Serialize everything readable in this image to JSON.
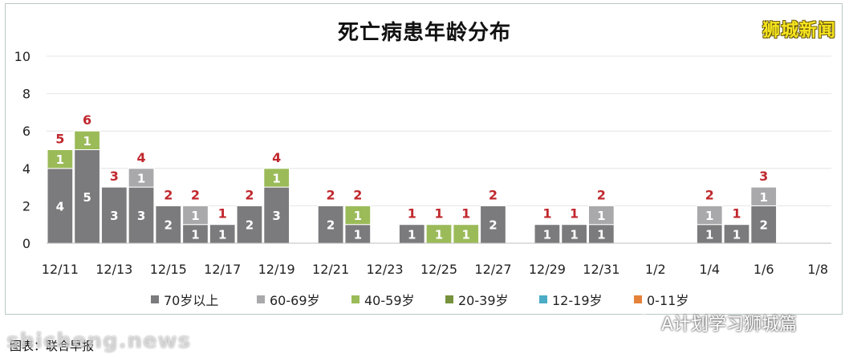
{
  "title": "死亡病患年龄分布",
  "brand": "狮城新闻",
  "watermark": "A计划学习狮城篇",
  "caption": "图表：联合早报",
  "site_mark": "shicheng.news",
  "legend": [
    {
      "label": "70岁以上",
      "color": "#7b7b7d"
    },
    {
      "label": "60-69岁",
      "color": "#a9a9ab"
    },
    {
      "label": "40-59岁",
      "color": "#9bbb59"
    },
    {
      "label": "20-39岁",
      "color": "#76923c"
    },
    {
      "label": "12-19岁",
      "color": "#4aacc6"
    },
    {
      "label": "0-11岁",
      "color": "#e5823a"
    }
  ],
  "chart_data": {
    "type": "bar",
    "stacked": true,
    "title": "死亡病患年龄分布",
    "ylim": [
      0,
      10
    ],
    "y_ticks": [
      "0",
      "2",
      "4",
      "6",
      "8",
      "10"
    ],
    "categories": [
      "12/11",
      "12/12",
      "12/13",
      "12/14",
      "12/15",
      "12/16",
      "12/17",
      "12/18",
      "12/19",
      "12/20",
      "12/21",
      "12/22",
      "12/23",
      "12/24",
      "12/25",
      "12/26",
      "12/27",
      "12/28",
      "12/29",
      "12/30",
      "12/31",
      "1/1",
      "1/2",
      "1/3",
      "1/4",
      "1/5",
      "1/6",
      "1/7",
      "1/8"
    ],
    "x_tick_labels": [
      "12/11",
      "",
      "12/13",
      "",
      "12/15",
      "",
      "12/17",
      "",
      "12/19",
      "",
      "12/21",
      "",
      "12/23",
      "",
      "12/25",
      "",
      "12/27",
      "",
      "12/29",
      "",
      "12/31",
      "",
      "1/2",
      "",
      "1/4",
      "",
      "1/6",
      "",
      "1/8"
    ],
    "series": [
      {
        "name": "70岁以上",
        "values": [
          4,
          5,
          3,
          3,
          2,
          1,
          1,
          2,
          3,
          0,
          2,
          1,
          0,
          1,
          0,
          0,
          2,
          0,
          1,
          1,
          1,
          0,
          0,
          0,
          1,
          1,
          2,
          0,
          0
        ]
      },
      {
        "name": "60-69岁",
        "values": [
          0,
          0,
          0,
          1,
          0,
          1,
          0,
          0,
          0,
          0,
          0,
          0,
          0,
          0,
          0,
          0,
          0,
          0,
          0,
          0,
          1,
          0,
          0,
          0,
          1,
          0,
          1,
          0,
          0
        ]
      },
      {
        "name": "40-59岁",
        "values": [
          1,
          1,
          0,
          0,
          0,
          0,
          0,
          0,
          1,
          0,
          0,
          1,
          0,
          0,
          1,
          1,
          0,
          0,
          0,
          0,
          0,
          0,
          0,
          0,
          0,
          0,
          0,
          0,
          0
        ]
      },
      {
        "name": "20-39岁",
        "values": [
          0,
          0,
          0,
          0,
          0,
          0,
          0,
          0,
          0,
          0,
          0,
          0,
          0,
          0,
          0,
          0,
          0,
          0,
          0,
          0,
          0,
          0,
          0,
          0,
          0,
          0,
          0,
          0,
          0
        ]
      },
      {
        "name": "12-19岁",
        "values": [
          0,
          0,
          0,
          0,
          0,
          0,
          0,
          0,
          0,
          0,
          0,
          0,
          0,
          0,
          0,
          0,
          0,
          0,
          0,
          0,
          0,
          0,
          0,
          0,
          0,
          0,
          0,
          0,
          0
        ]
      },
      {
        "name": "0-11岁",
        "values": [
          0,
          0,
          0,
          0,
          0,
          0,
          0,
          0,
          0,
          0,
          0,
          0,
          0,
          0,
          0,
          0,
          0,
          0,
          0,
          0,
          0,
          0,
          0,
          0,
          0,
          0,
          0,
          0,
          0
        ]
      }
    ],
    "totals": [
      5,
      6,
      3,
      4,
      2,
      2,
      1,
      2,
      4,
      0,
      2,
      2,
      0,
      1,
      1,
      1,
      2,
      0,
      1,
      1,
      2,
      0,
      0,
      0,
      2,
      1,
      3,
      0,
      0
    ],
    "grid": true,
    "legend_position": "bottom",
    "colors": [
      "#7b7b7d",
      "#a9a9ab",
      "#9bbb59",
      "#76923c",
      "#4aacc6",
      "#e5823a"
    ],
    "total_label_color": "#c0282d"
  }
}
